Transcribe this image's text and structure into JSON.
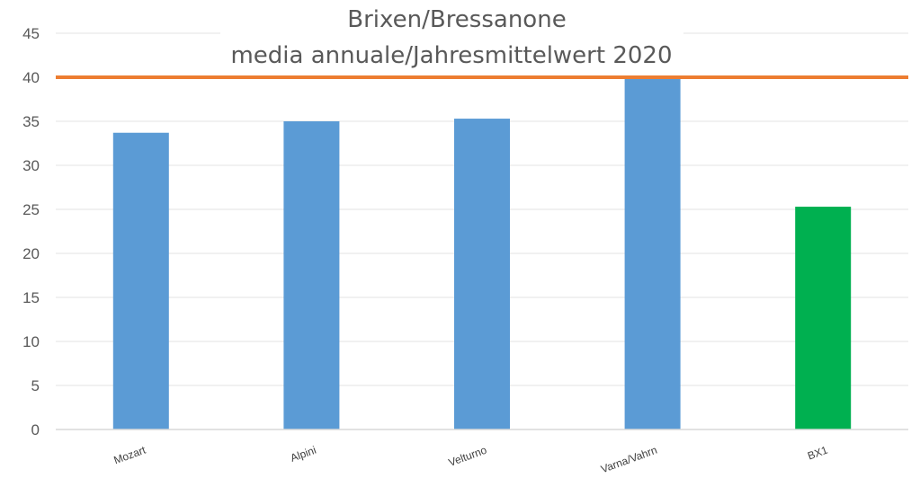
{
  "chart_data": {
    "type": "bar",
    "title_lines": [
      "Brixen/Bressanone",
      "media annuale/Jahresmittelwert 2020"
    ],
    "categories": [
      "Mozart",
      "Alpini",
      "Velturno",
      "Varna/Vahrn",
      "BX1"
    ],
    "values": [
      33.7,
      35.0,
      35.3,
      40.0,
      25.3
    ],
    "bar_colors": [
      "#5b9bd5",
      "#5b9bd5",
      "#5b9bd5",
      "#5b9bd5",
      "#00b050"
    ],
    "ylim": [
      0,
      45
    ],
    "yticks": [
      "0",
      "5",
      "10",
      "15",
      "20",
      "25",
      "30",
      "35",
      "40",
      "45"
    ],
    "reference_line": {
      "value": 40,
      "color": "#ed7d31"
    },
    "grid": true,
    "xlabel": "",
    "ylabel": ""
  }
}
